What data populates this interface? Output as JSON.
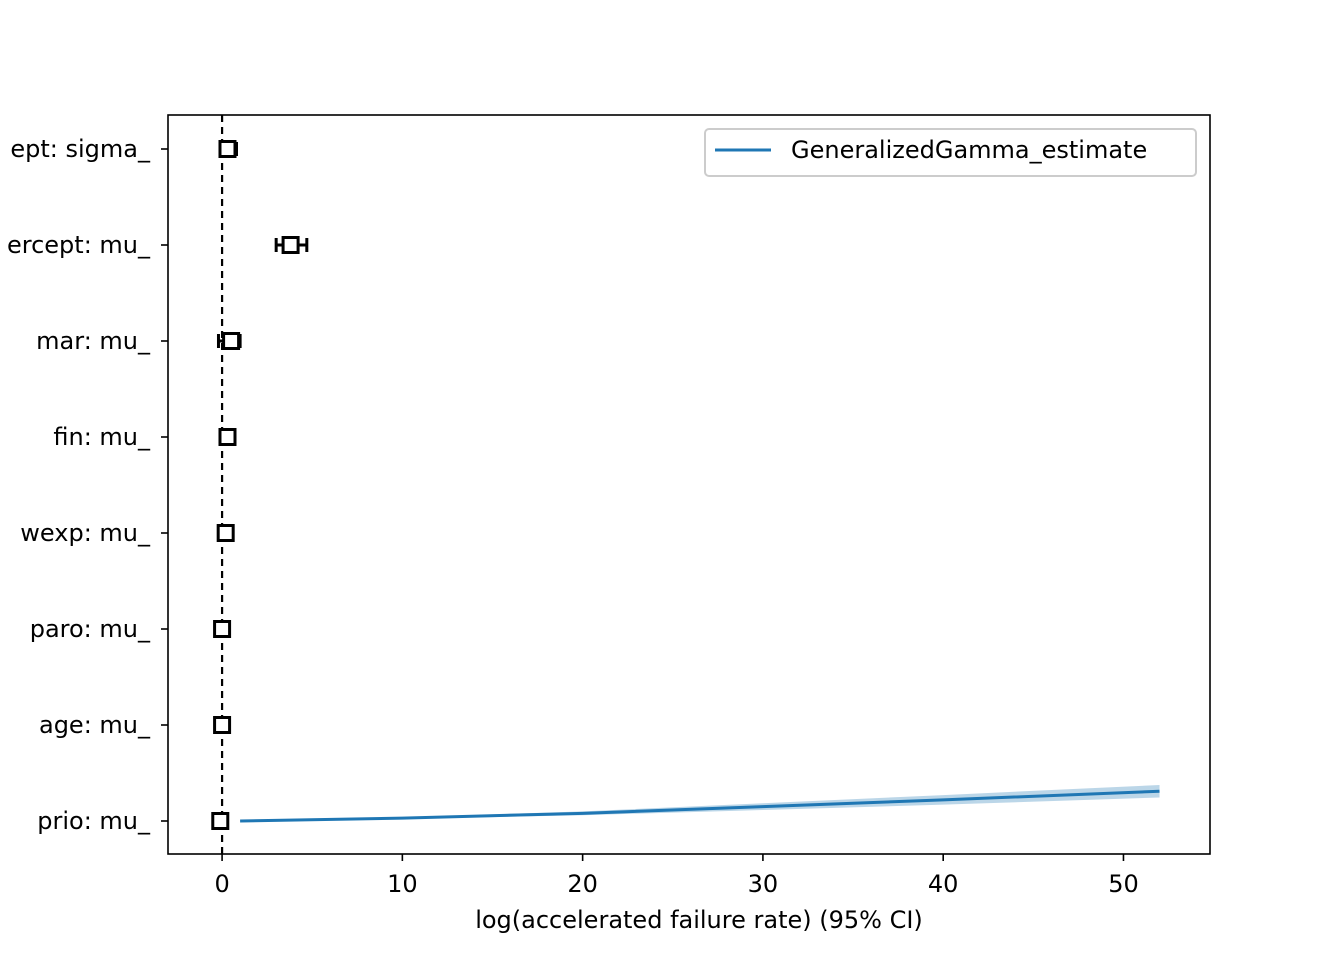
{
  "chart_data": {
    "type": "forest",
    "xlabel": "log(accelerated failure rate) (95% CI)",
    "xlim": [
      -3,
      54.8
    ],
    "x_ticks": [
      0,
      10,
      20,
      30,
      40,
      50
    ],
    "x_tick_labels": [
      "0",
      "10",
      "20",
      "30",
      "40",
      "50"
    ],
    "reference_line_x": 0,
    "grid": false,
    "categories": [
      "ept: sigma_",
      "ercept: mu_",
      "mar: mu_",
      "fin: mu_",
      "wexp: mu_",
      "paro: mu_",
      "age: mu_",
      "prio: mu_"
    ],
    "coefficients": [
      {
        "label": "ept: sigma_",
        "estimate": 0.3,
        "lower": 0.0,
        "upper": 0.8
      },
      {
        "label": "ercept: mu_",
        "estimate": 3.8,
        "lower": 3.0,
        "upper": 4.7
      },
      {
        "label": "mar: mu_",
        "estimate": 0.5,
        "lower": -0.2,
        "upper": 1.0
      },
      {
        "label": "fin: mu_",
        "estimate": 0.3,
        "lower": -0.1,
        "upper": 0.7
      },
      {
        "label": "wexp: mu_",
        "estimate": 0.2,
        "lower": -0.2,
        "upper": 0.6
      },
      {
        "label": "paro: mu_",
        "estimate": 0.0,
        "lower": -0.3,
        "upper": 0.3
      },
      {
        "label": "age: mu_",
        "estimate": 0.0,
        "lower": -0.1,
        "upper": 0.1
      },
      {
        "label": "prio: mu_",
        "estimate": -0.1,
        "lower": -0.2,
        "upper": 0.0
      }
    ],
    "series": [
      {
        "name": "GeneralizedGamma_estimate",
        "color": "#1f77b4",
        "x": [
          1,
          10,
          20,
          30,
          40,
          52
        ],
        "y_rows_from_bottom": [
          0.0,
          0.03,
          0.08,
          0.15,
          0.22,
          0.31
        ],
        "band_halfwidth_rows": [
          0.0,
          0.008,
          0.02,
          0.035,
          0.05,
          0.065
        ]
      }
    ],
    "legend_position": "upper right"
  }
}
